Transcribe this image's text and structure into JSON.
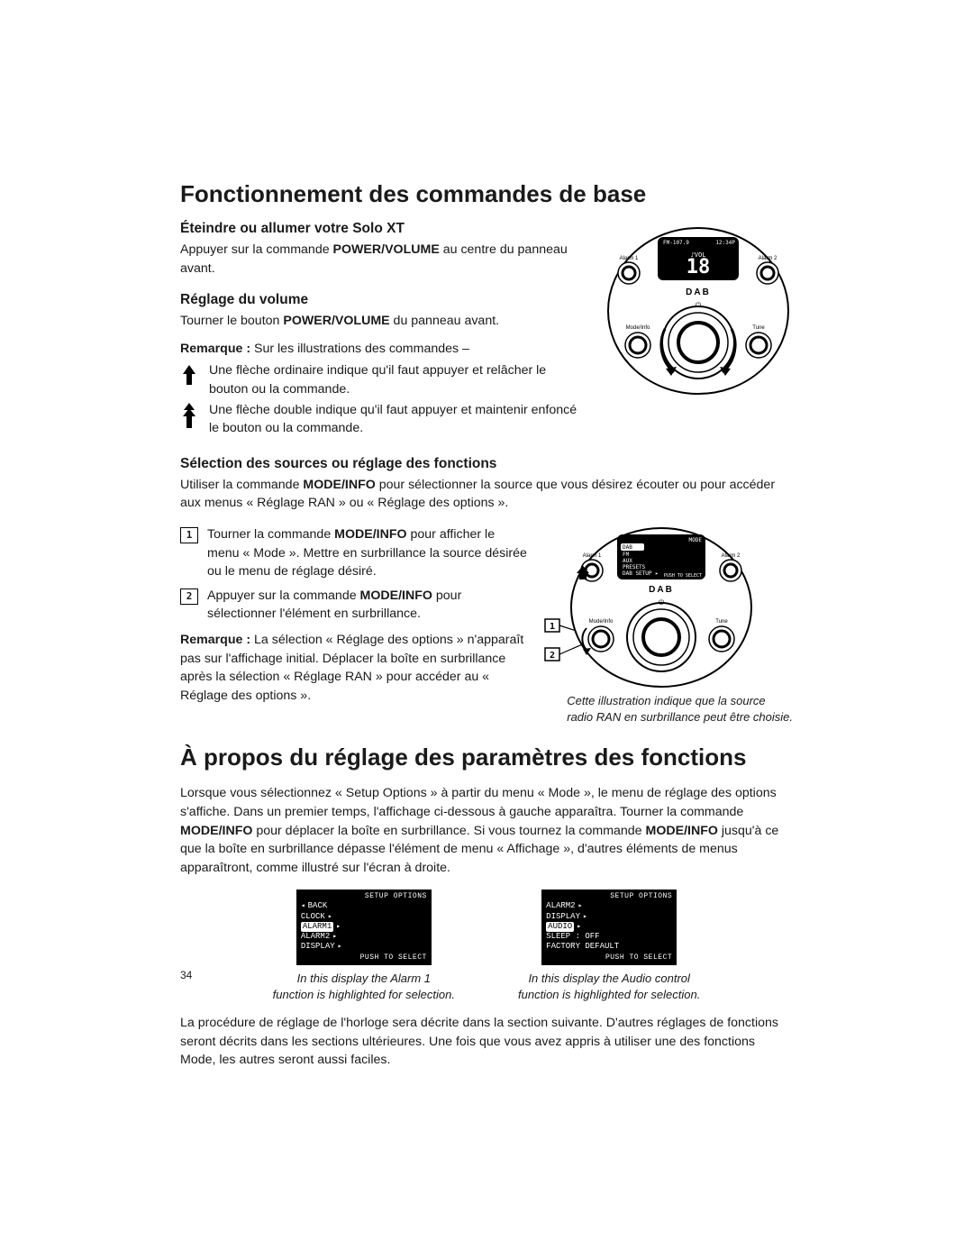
{
  "page_number": "34",
  "section1": {
    "h1": "Fonctionnement des commandes de base",
    "sub1": {
      "heading": "Éteindre ou allumer votre Solo XT",
      "p_pre": "Appuyer sur la commande ",
      "p_bold": "POWER/VOLUME",
      "p_post": " au centre du panneau avant."
    },
    "sub2": {
      "heading": "Réglage du volume",
      "p_pre": "Tourner le bouton ",
      "p_bold": "POWER/VOLUME",
      "p_post": " du panneau avant.",
      "note_label": "Remarque :",
      "note_text": " Sur les illustrations des commandes –",
      "arrow1": "Une flèche ordinaire indique qu'il faut appuyer et relâcher le bouton ou la commande.",
      "arrow2": "Une flèche double indique qu'il faut appuyer et maintenir enfoncé le bouton ou la commande."
    },
    "sub3": {
      "heading": "Sélection des sources ou réglage des fonctions",
      "intro_pre": "Utiliser la commande ",
      "intro_bold": "MODE/INFO",
      "intro_post": " pour sélectionner la source que vous désirez écouter ou pour accéder aux menus « Réglage RAN » ou « Réglage des options ».",
      "step1_num": "1",
      "step1_pre": "Tourner la commande ",
      "step1_bold": "MODE/INFO",
      "step1_post": " pour afficher le menu « Mode ». Mettre en surbrillance la source désirée ou le menu de réglage désiré.",
      "step2_num": "2",
      "step2_pre": "Appuyer sur la commande ",
      "step2_bold": "MODE/INFO",
      "step2_post": " pour sélectionner l'élément en surbrillance.",
      "note_label": "Remarque :",
      "note_text": " La sélection « Réglage des options » n'apparaît pas sur l'affichage initial. Déplacer la boîte en surbrillance après la sélection « Réglage RAN » pour accéder au « Réglage des options ».",
      "fig_caption_l1": "Cette illustration indique que la source",
      "fig_caption_l2": "radio RAN en surbrillance peut être choisie."
    },
    "panel1": {
      "display_left": "FM-107.9",
      "display_right": "12:34P",
      "vol_label": "VOL",
      "vol_value": "18",
      "brand": "DAB",
      "alarm1": "Alarm 1",
      "alarm2": "Alarm 2",
      "mode_info": "Mode/Info",
      "tune": "Tune"
    },
    "panel2": {
      "display_hdr": "MODE",
      "items": [
        "DAB",
        "FM",
        "AUX",
        "PRESETS",
        "DAB SETUP ▸"
      ],
      "highlight_index": 0,
      "push": "PUSH TO SELECT",
      "brand": "DAB",
      "alarm1": "Alarm 1",
      "alarm2": "Alarm 2",
      "mode_info": "Mode/Info",
      "tune": "Tune",
      "callout1": "1",
      "callout2": "2"
    }
  },
  "section2": {
    "h1": "À propos du réglage des paramètres des fonctions",
    "p1_a": "Lorsque vous sélectionnez « Setup Options » à partir du menu « Mode », le menu de réglage des options s'affiche. Dans un premier temps, l'affichage ci-dessous à gauche apparaîtra. Tourner la commande ",
    "p1_b": "MODE/INFO",
    "p1_c": " pour déplacer la boîte en surbrillance. Si vous tournez la commande ",
    "p1_d": "MODE/INFO",
    "p1_e": " jusqu'à ce que la boîte en surbrillance dépasse l'élément de menu « Affichage », d'autres éléments de menus apparaîtront, comme illustré sur l'écran à droite.",
    "lcd1": {
      "hdr": "SETUP OPTIONS",
      "rows": [
        {
          "left_tri": true,
          "label": "BACK",
          "right_tri": false,
          "hl": false
        },
        {
          "left_tri": false,
          "label": "CLOCK",
          "right_tri": true,
          "hl": false
        },
        {
          "left_tri": false,
          "label": "ALARM1",
          "right_tri": true,
          "hl": true
        },
        {
          "left_tri": false,
          "label": "ALARM2",
          "right_tri": true,
          "hl": false
        },
        {
          "left_tri": false,
          "label": "DISPLAY",
          "right_tri": true,
          "hl": false
        }
      ],
      "ftr": "PUSH TO SELECT",
      "cap_l1": "In this display the Alarm 1",
      "cap_l2": "function is highlighted for selection."
    },
    "lcd2": {
      "hdr": "SETUP OPTIONS",
      "rows": [
        {
          "left_tri": false,
          "label": "ALARM2",
          "right_tri": true,
          "hl": false
        },
        {
          "left_tri": false,
          "label": "DISPLAY",
          "right_tri": true,
          "hl": false
        },
        {
          "left_tri": false,
          "label": "AUDIO",
          "right_tri": true,
          "hl": true
        },
        {
          "left_tri": false,
          "label": "SLEEP : OFF",
          "right_tri": false,
          "hl": false
        },
        {
          "left_tri": false,
          "label": "FACTORY DEFAULT",
          "right_tri": false,
          "hl": false
        }
      ],
      "ftr": "PUSH TO SELECT",
      "cap_l1": "In this display the Audio control",
      "cap_l2": "function is highlighted for selection."
    },
    "p2": "La procédure de réglage de l'horloge sera décrite dans la section suivante. D'autres réglages de fonctions seront décrits dans les sections ultérieures. Une fois que vous avez appris à utiliser une des fonctions Mode, les autres seront aussi faciles."
  }
}
